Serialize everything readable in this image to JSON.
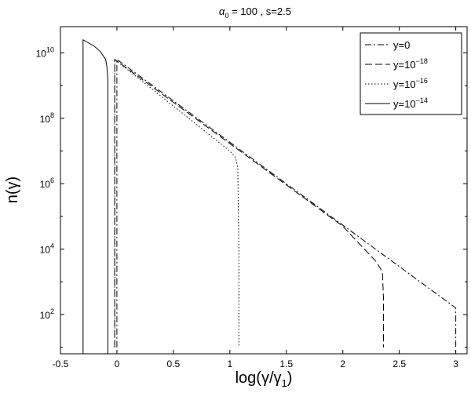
{
  "chart_data": {
    "type": "line",
    "title": {
      "alpha": "α",
      "alpha_sub": "0",
      "rest": " = 100 , s=2.5"
    },
    "xlabel": {
      "pre": "log(γ/γ",
      "sub": "1",
      "post": ")"
    },
    "ylabel": "n(γ)",
    "xlim": [
      -0.5,
      3.1
    ],
    "ylim_log10": [
      0.8,
      10.8
    ],
    "y_scale": "log",
    "grid": false,
    "legend_position": "top-right",
    "x_ticks": [
      {
        "v": -0.5,
        "label": "-0.5"
      },
      {
        "v": 0,
        "label": "0"
      },
      {
        "v": 0.5,
        "label": "0.5"
      },
      {
        "v": 1,
        "label": "1"
      },
      {
        "v": 1.5,
        "label": "1.5"
      },
      {
        "v": 2,
        "label": "2"
      },
      {
        "v": 2.5,
        "label": "2.5"
      },
      {
        "v": 3,
        "label": "3"
      }
    ],
    "y_ticks": [
      {
        "exp": 2,
        "base": "10",
        "sup": "2"
      },
      {
        "exp": 4,
        "base": "10",
        "sup": "4"
      },
      {
        "exp": 6,
        "base": "10",
        "sup": "6"
      },
      {
        "exp": 8,
        "base": "10",
        "sup": "8"
      },
      {
        "exp": 10,
        "base": "10",
        "sup": "10"
      }
    ],
    "series": [
      {
        "name": "y=0",
        "name_base": "y=0",
        "name_sup": "",
        "style": "dashdot",
        "points_log10": [
          [
            0,
            1.0
          ],
          [
            0,
            9.8
          ],
          [
            3.0,
            2.2
          ],
          [
            3.0,
            1.0
          ]
        ]
      },
      {
        "name": "y=10^-18",
        "name_base": "y=10",
        "name_sup": "−18",
        "style": "dashed",
        "points_log10": [
          [
            -0.02,
            1.0
          ],
          [
            -0.02,
            9.8
          ],
          [
            2.0,
            4.7
          ],
          [
            2.3,
            3.6
          ],
          [
            2.35,
            3.3
          ],
          [
            2.36,
            2.5
          ],
          [
            2.36,
            1.0
          ]
        ]
      },
      {
        "name": "y=10^-16",
        "name_base": "y=10",
        "name_sup": "−16",
        "style": "dotted",
        "points_log10": [
          [
            -0.02,
            1.0
          ],
          [
            -0.02,
            9.8
          ],
          [
            1.0,
            7.0
          ],
          [
            1.05,
            6.8
          ],
          [
            1.07,
            6.5
          ],
          [
            1.08,
            4.0
          ],
          [
            1.08,
            1.0
          ]
        ]
      },
      {
        "name": "y=10^-14",
        "name_base": "y=10",
        "name_sup": "−14",
        "style": "solid",
        "points_log10": [
          [
            -0.3,
            0.8
          ],
          [
            -0.3,
            10.4
          ],
          [
            -0.2,
            10.2
          ],
          [
            -0.15,
            10.05
          ],
          [
            -0.1,
            9.8
          ],
          [
            -0.09,
            9.6
          ],
          [
            -0.08,
            9.2
          ],
          [
            -0.08,
            0.8
          ]
        ]
      }
    ]
  }
}
